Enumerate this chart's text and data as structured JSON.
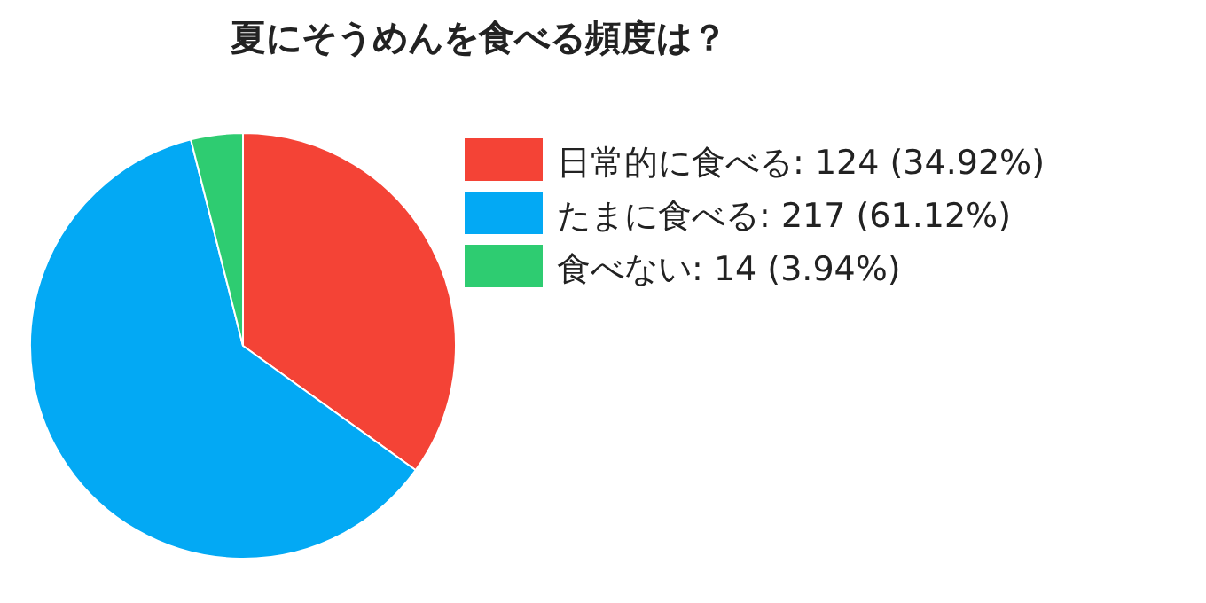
{
  "chart_data": {
    "type": "pie",
    "title": "夏にそうめんを食べる頻度は？",
    "categories": [
      "日常的に食べる",
      "たまに食べる",
      "食べない"
    ],
    "values": [
      124,
      217,
      14
    ],
    "value_labels": [
      "124 (34.92%)",
      "217 (61.12%)",
      "14 (3.94%)"
    ],
    "colors": [
      "#f44336",
      "#03a9f4",
      "#2ecc71"
    ],
    "legend": "top right"
  }
}
